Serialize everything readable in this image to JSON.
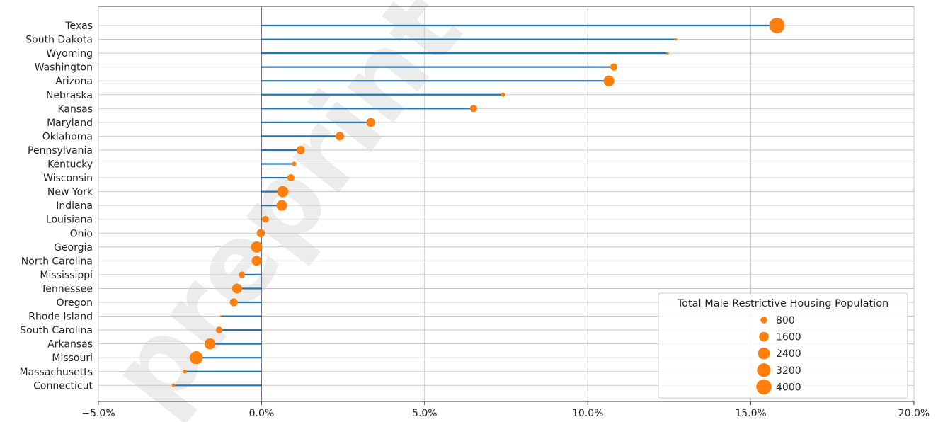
{
  "chart_data": {
    "type": "lollipop",
    "categories": [
      "Texas",
      "South Dakota",
      "Wyoming",
      "Washington",
      "Arizona",
      "Nebraska",
      "Kansas",
      "Maryland",
      "Oklahoma",
      "Pennsylvania",
      "Kentucky",
      "Wisconsin",
      "New York",
      "Indiana",
      "Louisiana",
      "Ohio",
      "Georgia",
      "North Carolina",
      "Mississippi",
      "Tennessee",
      "Oregon",
      "Rhode Island",
      "South Carolina",
      "Arkansas",
      "Missouri",
      "Massachusetts",
      "Connecticut"
    ],
    "values": [
      15.8,
      12.7,
      12.45,
      10.8,
      10.65,
      7.4,
      6.5,
      3.35,
      2.4,
      1.2,
      1.0,
      0.9,
      0.65,
      0.62,
      0.12,
      -0.02,
      -0.15,
      -0.15,
      -0.6,
      -0.75,
      -0.85,
      -1.25,
      -1.3,
      -1.58,
      -2.0,
      -2.35,
      -2.7
    ],
    "sizes": [
      4200,
      120,
      100,
      900,
      2000,
      300,
      900,
      1400,
      1300,
      1200,
      350,
      900,
      2200,
      2000,
      800,
      1200,
      2200,
      1700,
      700,
      1700,
      1100,
      60,
      800,
      2100,
      2900,
      250,
      200
    ],
    "xlim": [
      -5,
      20
    ],
    "xticks": [
      -5,
      0,
      5,
      10,
      15,
      20
    ],
    "xtick_labels": [
      "−5.0%",
      "0.0%",
      "5.0%",
      "10.0%",
      "15.0%",
      "20.0%"
    ],
    "grid": true,
    "colors": {
      "line": "#1f77b4",
      "marker": "#ff7f0e",
      "zero_line": "#0000ff"
    },
    "legend": {
      "title": "Total Male Restrictive Housing Population",
      "placement": "lower-right",
      "entries": [
        {
          "label": "800",
          "size": 800
        },
        {
          "label": "1600",
          "size": 1600
        },
        {
          "label": "2400",
          "size": 2400
        },
        {
          "label": "3200",
          "size": 3200
        },
        {
          "label": "4000",
          "size": 4000
        }
      ]
    }
  },
  "watermark": "preprint not peer reviewed"
}
